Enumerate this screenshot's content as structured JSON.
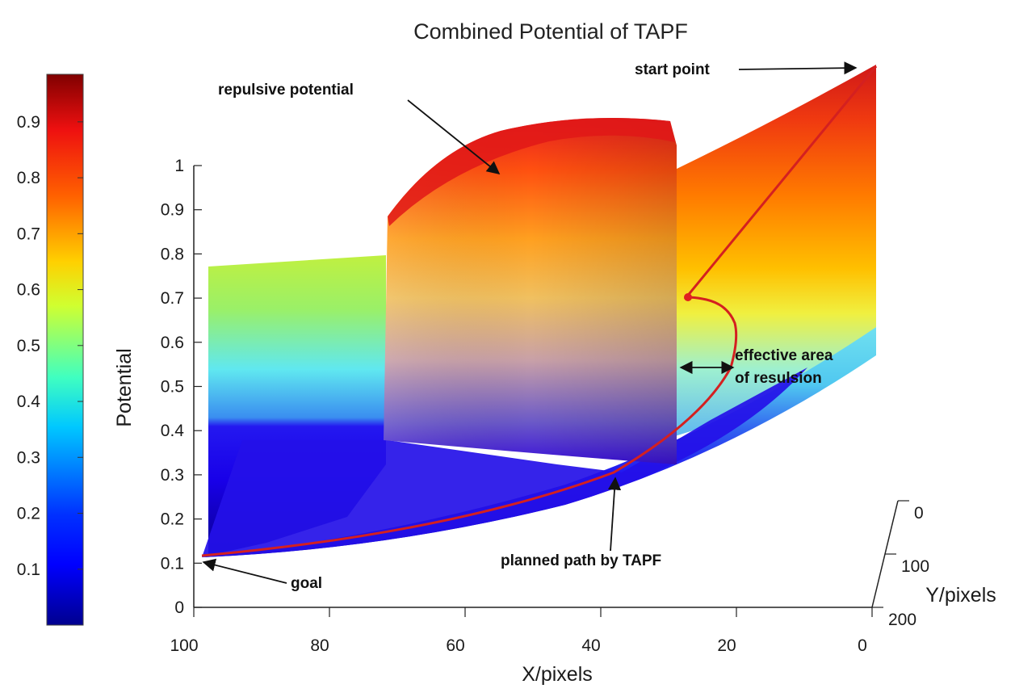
{
  "chart_data": {
    "type": "surface",
    "title": "Combined Potential of TAPF",
    "xlabel": "X/pixels",
    "ylabel": "Y/pixels",
    "zlabel": "Potential",
    "x_ticks": [
      "100",
      "80",
      "60",
      "40",
      "20",
      "0"
    ],
    "y_ticks": [
      "0",
      "100",
      "200"
    ],
    "z_ticks": [
      "0",
      "0.1",
      "0.2",
      "0.3",
      "0.4",
      "0.5",
      "0.6",
      "0.7",
      "0.8",
      "0.9",
      "1"
    ],
    "colorbar_ticks": [
      "0.1",
      "0.2",
      "0.3",
      "0.4",
      "0.5",
      "0.6",
      "0.7",
      "0.8",
      "0.9"
    ],
    "xlim": [
      100,
      0
    ],
    "ylim": [
      0,
      200
    ],
    "zlim": [
      0,
      1
    ],
    "colormap": "jet",
    "annotations": [
      {
        "id": "start",
        "text": "start point"
      },
      {
        "id": "repulsive",
        "text": "repulsive potential"
      },
      {
        "id": "effective1",
        "text": "effective area"
      },
      {
        "id": "effective2",
        "text": "of resulsion"
      },
      {
        "id": "path",
        "text": "planned path by TAPF"
      },
      {
        "id": "goal",
        "text": "goal"
      }
    ],
    "path_color": "#d42020"
  }
}
